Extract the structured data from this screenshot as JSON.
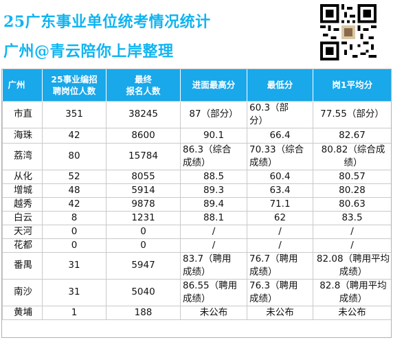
{
  "banner": {
    "line1": "25广东事业单位统考情况统计",
    "line2": "广州@青云陪你上岸整理",
    "accent_color": "#10b4f0",
    "qr_icon": "qr-code-icon"
  },
  "table": {
    "header_color": "#19a8ea",
    "headers": [
      "广州",
      "25事业编招\n聘岗位人数",
      "最终\n报名人数",
      "进面最高分",
      "最低分",
      "岗1平均分"
    ],
    "rows": [
      {
        "district": "市直",
        "positions": "351",
        "applicants": "38245",
        "max": "87（部分）",
        "min": "60.3（部\n分）",
        "avg": "77.55（部分）"
      },
      {
        "district": "海珠",
        "positions": "42",
        "applicants": "8600",
        "max": "90.1",
        "min": "66.4",
        "avg": "82.67"
      },
      {
        "district": "荔湾",
        "positions": "80",
        "applicants": "15784",
        "max": "86.3（综合\n成绩）",
        "min": "70.33（综合\n成绩）",
        "avg": "80.82（综合成\n绩）"
      },
      {
        "district": "从化",
        "positions": "52",
        "applicants": "8055",
        "max": "88.5",
        "min": "60.4",
        "avg": "80.57"
      },
      {
        "district": "增城",
        "positions": "48",
        "applicants": "5914",
        "max": "89.3",
        "min": "63.4",
        "avg": "80.28"
      },
      {
        "district": "越秀",
        "positions": "42",
        "applicants": "9878",
        "max": "89.4",
        "min": "71.1",
        "avg": "80.63"
      },
      {
        "district": "白云",
        "positions": "8",
        "applicants": "1231",
        "max": "88.1",
        "min": "62",
        "avg": "83.5"
      },
      {
        "district": "天河",
        "positions": "0",
        "applicants": "0",
        "max": "/",
        "min": "/",
        "avg": "/"
      },
      {
        "district": "花都",
        "positions": "0",
        "applicants": "0",
        "max": "/",
        "min": "/",
        "avg": "/"
      },
      {
        "district": "番禺",
        "positions": "31",
        "applicants": "5947",
        "max": "83.7（聘用\n成绩）",
        "min": "76.7（聘用\n成绩）",
        "avg": "82.08（聘用平均\n成绩）"
      },
      {
        "district": "南沙",
        "positions": "31",
        "applicants": "5040",
        "max": "86.55（聘用\n成绩）",
        "min": "76.3（聘用\n成绩）",
        "avg": "82.8（聘用平均\n成绩）"
      },
      {
        "district": "黄埔",
        "positions": "1",
        "applicants": "188",
        "max": "未公布",
        "min": "未公布",
        "avg": "未公布"
      }
    ]
  }
}
